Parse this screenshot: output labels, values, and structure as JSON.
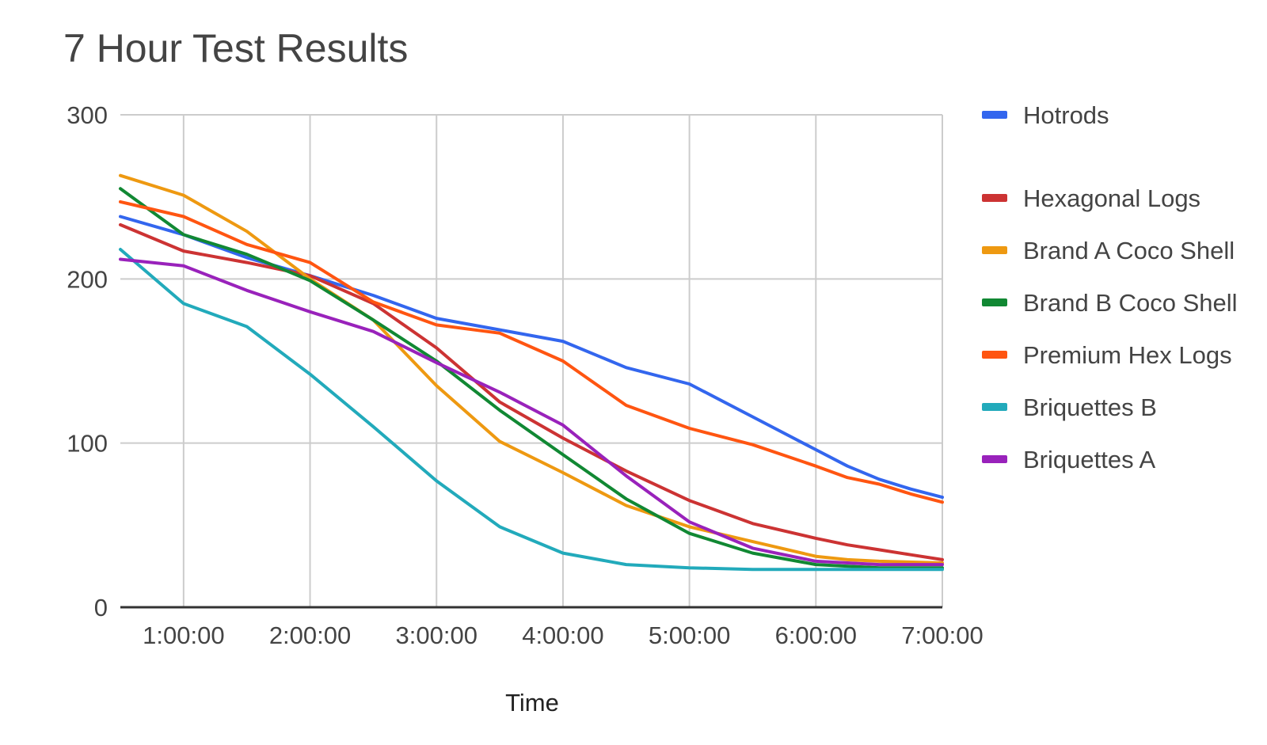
{
  "chart_data": {
    "type": "line",
    "title": "7 Hour Test  Results",
    "xlabel": "Time",
    "ylabel": "",
    "x_unit": "hours",
    "xlim": [
      0.5,
      7
    ],
    "ylim": [
      0,
      300
    ],
    "y_ticks": [
      0,
      100,
      200,
      300
    ],
    "x_ticks": [
      {
        "value": 1,
        "label": "1:00:00"
      },
      {
        "value": 2,
        "label": "2:00:00"
      },
      {
        "value": 3,
        "label": "3:00:00"
      },
      {
        "value": 4,
        "label": "4:00:00"
      },
      {
        "value": 5,
        "label": "5:00:00"
      },
      {
        "value": 6,
        "label": "6:00:00"
      },
      {
        "value": 7,
        "label": "7:00:00"
      }
    ],
    "grid": true,
    "legend_position": "right",
    "series": [
      {
        "name": "Hotrods",
        "color": "#3366ee",
        "x": [
          0.5,
          1,
          1.5,
          2,
          2.5,
          3,
          3.5,
          4,
          4.5,
          5,
          5.5,
          6,
          6.25,
          6.5,
          6.75,
          7
        ],
        "y": [
          238,
          227,
          213,
          202,
          190,
          176,
          169,
          162,
          146,
          136,
          116,
          96,
          86,
          78,
          72,
          67
        ]
      },
      {
        "name": "Hexagonal Logs",
        "color": "#cc3333",
        "x": [
          0.5,
          1,
          1.5,
          2,
          2.5,
          3,
          3.5,
          4,
          4.5,
          5,
          5.5,
          6,
          6.25,
          6.5,
          6.75,
          7
        ],
        "y": [
          233,
          217,
          210,
          202,
          185,
          158,
          125,
          103,
          83,
          65,
          51,
          42,
          38,
          35,
          32,
          29
        ]
      },
      {
        "name": "Brand A Coco Shell",
        "color": "#ee9911",
        "x": [
          0.5,
          1,
          1.5,
          2,
          2.5,
          3,
          3.5,
          4,
          4.5,
          5,
          5.5,
          6,
          6.25,
          6.5,
          7
        ],
        "y": [
          263,
          251,
          229,
          200,
          175,
          135,
          101,
          82,
          62,
          49,
          40,
          31,
          29,
          28,
          27
        ]
      },
      {
        "name": "Brand B Coco Shell",
        "color": "#118833",
        "x": [
          0.5,
          1,
          1.5,
          2,
          2.5,
          3,
          3.5,
          4,
          4.5,
          5,
          5.5,
          6,
          6.5,
          7
        ],
        "y": [
          255,
          227,
          215,
          199,
          175,
          150,
          120,
          93,
          66,
          45,
          33,
          26,
          24,
          24
        ]
      },
      {
        "name": "Premium Hex Logs",
        "color": "#ff5511",
        "x": [
          0.5,
          1,
          1.5,
          2,
          2.5,
          3,
          3.5,
          4,
          4.5,
          5,
          5.5,
          6,
          6.25,
          6.5,
          6.75,
          7
        ],
        "y": [
          247,
          238,
          221,
          210,
          186,
          172,
          167,
          150,
          123,
          109,
          99,
          86,
          79,
          75,
          69,
          64
        ]
      },
      {
        "name": "Briquettes B",
        "color": "#22aabb",
        "x": [
          0.5,
          1,
          1.5,
          2,
          2.5,
          3,
          3.5,
          4,
          4.5,
          5,
          5.5,
          6,
          6.5,
          7
        ],
        "y": [
          218,
          185,
          171,
          142,
          110,
          77,
          49,
          33,
          26,
          24,
          23,
          23,
          23,
          23
        ]
      },
      {
        "name": "Briquettes A",
        "color": "#9922bb",
        "x": [
          0.5,
          1,
          1.5,
          2,
          2.5,
          3,
          3.5,
          4,
          4.5,
          5,
          5.5,
          6,
          6.5,
          7
        ],
        "y": [
          212,
          208,
          193,
          180,
          168,
          149,
          131,
          111,
          80,
          52,
          36,
          28,
          26,
          26
        ]
      }
    ]
  }
}
